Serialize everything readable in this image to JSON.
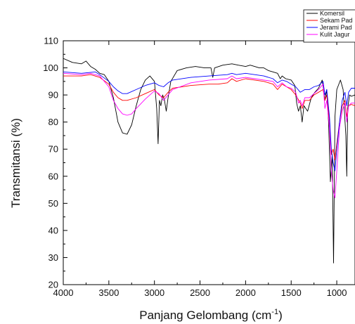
{
  "chart_data": {
    "type": "line",
    "xlabel": "Panjang Gelombang (cm",
    "xlabel_sup": "-1",
    "xlabel_suffix": ")",
    "ylabel": "Transmitansi (%)",
    "xlim": [
      4000,
      800
    ],
    "x_reversed": true,
    "ylim": [
      20,
      110
    ],
    "x_ticks": [
      4000,
      3500,
      3000,
      2500,
      2000,
      1500,
      1000
    ],
    "y_ticks": [
      20,
      30,
      40,
      50,
      60,
      70,
      80,
      90,
      100,
      110
    ],
    "grid": false,
    "legend_position": "top-right",
    "series": [
      {
        "name": "Komersil",
        "color": "#000000",
        "points": [
          [
            4000,
            103.5
          ],
          [
            3900,
            102
          ],
          [
            3800,
            101.5
          ],
          [
            3750,
            102.5
          ],
          [
            3700,
            100.5
          ],
          [
            3650,
            99.5
          ],
          [
            3600,
            98
          ],
          [
            3550,
            97.5
          ],
          [
            3500,
            95
          ],
          [
            3450,
            89
          ],
          [
            3400,
            80
          ],
          [
            3350,
            76
          ],
          [
            3300,
            75.5
          ],
          [
            3250,
            79
          ],
          [
            3200,
            86
          ],
          [
            3150,
            92
          ],
          [
            3100,
            95.5
          ],
          [
            3050,
            97
          ],
          [
            3000,
            95
          ],
          [
            2975,
            85
          ],
          [
            2960,
            72
          ],
          [
            2945,
            88
          ],
          [
            2930,
            86
          ],
          [
            2910,
            90
          ],
          [
            2890,
            88
          ],
          [
            2870,
            84
          ],
          [
            2850,
            89
          ],
          [
            2820,
            95
          ],
          [
            2750,
            99
          ],
          [
            2650,
            100
          ],
          [
            2550,
            100.5
          ],
          [
            2450,
            100
          ],
          [
            2380,
            100
          ],
          [
            2360,
            96.5
          ],
          [
            2340,
            100
          ],
          [
            2250,
            101
          ],
          [
            2150,
            101.5
          ],
          [
            2080,
            101
          ],
          [
            2000,
            100.5
          ],
          [
            1950,
            101
          ],
          [
            1900,
            100.5
          ],
          [
            1850,
            100
          ],
          [
            1800,
            100
          ],
          [
            1750,
            99
          ],
          [
            1700,
            98.5
          ],
          [
            1650,
            98
          ],
          [
            1620,
            96
          ],
          [
            1600,
            97
          ],
          [
            1560,
            96
          ],
          [
            1500,
            95.5
          ],
          [
            1460,
            93.5
          ],
          [
            1440,
            87
          ],
          [
            1420,
            84
          ],
          [
            1400,
            86
          ],
          [
            1380,
            80
          ],
          [
            1360,
            86
          ],
          [
            1320,
            84
          ],
          [
            1280,
            89
          ],
          [
            1240,
            91
          ],
          [
            1200,
            92.5
          ],
          [
            1160,
            95.5
          ],
          [
            1130,
            88
          ],
          [
            1110,
            92
          ],
          [
            1090,
            80
          ],
          [
            1070,
            58
          ],
          [
            1050,
            68
          ],
          [
            1035,
            28
          ],
          [
            1020,
            82
          ],
          [
            1000,
            92
          ],
          [
            960,
            95.5
          ],
          [
            930,
            92
          ],
          [
            900,
            75
          ],
          [
            890,
            60
          ],
          [
            880,
            85
          ],
          [
            860,
            90
          ],
          [
            840,
            89.5
          ],
          [
            800,
            90
          ]
        ]
      },
      {
        "name": "Sekam Pad",
        "color": "#ff0000",
        "points": [
          [
            4000,
            97
          ],
          [
            3800,
            97
          ],
          [
            3700,
            97.5
          ],
          [
            3600,
            96.5
          ],
          [
            3500,
            94
          ],
          [
            3450,
            91
          ],
          [
            3400,
            89
          ],
          [
            3350,
            88
          ],
          [
            3300,
            88
          ],
          [
            3200,
            89
          ],
          [
            3100,
            90.5
          ],
          [
            3000,
            92
          ],
          [
            2950,
            90
          ],
          [
            2900,
            89
          ],
          [
            2850,
            91
          ],
          [
            2800,
            92.5
          ],
          [
            2600,
            93.5
          ],
          [
            2400,
            94
          ],
          [
            2300,
            94
          ],
          [
            2200,
            94.5
          ],
          [
            2150,
            96
          ],
          [
            2100,
            95
          ],
          [
            2000,
            96
          ],
          [
            1900,
            95.5
          ],
          [
            1800,
            95
          ],
          [
            1700,
            94
          ],
          [
            1650,
            92
          ],
          [
            1600,
            94
          ],
          [
            1550,
            93
          ],
          [
            1500,
            92
          ],
          [
            1450,
            90
          ],
          [
            1400,
            87
          ],
          [
            1380,
            85
          ],
          [
            1350,
            88
          ],
          [
            1300,
            88
          ],
          [
            1250,
            90
          ],
          [
            1200,
            91
          ],
          [
            1150,
            92
          ],
          [
            1130,
            88
          ],
          [
            1110,
            90
          ],
          [
            1080,
            80
          ],
          [
            1060,
            68
          ],
          [
            1040,
            70
          ],
          [
            1020,
            66
          ],
          [
            1000,
            72
          ],
          [
            970,
            80
          ],
          [
            940,
            86
          ],
          [
            910,
            88
          ],
          [
            890,
            82
          ],
          [
            870,
            86
          ],
          [
            840,
            86.5
          ],
          [
            800,
            86
          ]
        ]
      },
      {
        "name": "Jerami Pad",
        "color": "#0000ff",
        "points": [
          [
            4000,
            98.5
          ],
          [
            3800,
            98
          ],
          [
            3650,
            98.5
          ],
          [
            3600,
            97.5
          ],
          [
            3500,
            95
          ],
          [
            3450,
            93
          ],
          [
            3400,
            91.5
          ],
          [
            3350,
            90.5
          ],
          [
            3300,
            90.5
          ],
          [
            3200,
            92
          ],
          [
            3100,
            93.5
          ],
          [
            3000,
            94.5
          ],
          [
            2950,
            93.5
          ],
          [
            2900,
            93
          ],
          [
            2850,
            94.5
          ],
          [
            2800,
            95.5
          ],
          [
            2600,
            96.5
          ],
          [
            2400,
            97
          ],
          [
            2200,
            97.5
          ],
          [
            2150,
            98
          ],
          [
            2100,
            97.5
          ],
          [
            2000,
            98
          ],
          [
            1900,
            97.5
          ],
          [
            1800,
            97
          ],
          [
            1700,
            96
          ],
          [
            1650,
            94.5
          ],
          [
            1600,
            95.5
          ],
          [
            1550,
            95
          ],
          [
            1500,
            94
          ],
          [
            1450,
            93
          ],
          [
            1400,
            91
          ],
          [
            1350,
            92
          ],
          [
            1300,
            92
          ],
          [
            1250,
            93
          ],
          [
            1200,
            93.5
          ],
          [
            1150,
            95
          ],
          [
            1130,
            90
          ],
          [
            1110,
            92
          ],
          [
            1080,
            82
          ],
          [
            1060,
            70
          ],
          [
            1040,
            65
          ],
          [
            1020,
            62
          ],
          [
            1000,
            70
          ],
          [
            970,
            80
          ],
          [
            940,
            88
          ],
          [
            910,
            91
          ],
          [
            890,
            86
          ],
          [
            870,
            91
          ],
          [
            840,
            92.5
          ],
          [
            800,
            92.5
          ]
        ]
      },
      {
        "name": "Kulit Jagur",
        "color": "#ff00ff",
        "points": [
          [
            4000,
            98
          ],
          [
            3800,
            97.5
          ],
          [
            3700,
            98
          ],
          [
            3600,
            97
          ],
          [
            3500,
            93
          ],
          [
            3450,
            88
          ],
          [
            3400,
            85
          ],
          [
            3350,
            83
          ],
          [
            3300,
            82.5
          ],
          [
            3250,
            83
          ],
          [
            3200,
            85
          ],
          [
            3100,
            88.5
          ],
          [
            3000,
            91.5
          ],
          [
            2950,
            90.5
          ],
          [
            2900,
            88
          ],
          [
            2850,
            90
          ],
          [
            2800,
            92
          ],
          [
            2600,
            94.5
          ],
          [
            2400,
            95.5
          ],
          [
            2200,
            96
          ],
          [
            2150,
            97
          ],
          [
            2100,
            96
          ],
          [
            2000,
            96.5
          ],
          [
            1900,
            96
          ],
          [
            1800,
            95.5
          ],
          [
            1700,
            95
          ],
          [
            1650,
            93
          ],
          [
            1600,
            94.5
          ],
          [
            1550,
            93
          ],
          [
            1500,
            92.5
          ],
          [
            1450,
            91
          ],
          [
            1420,
            87
          ],
          [
            1400,
            88
          ],
          [
            1380,
            86
          ],
          [
            1350,
            89
          ],
          [
            1300,
            89
          ],
          [
            1250,
            90.5
          ],
          [
            1200,
            92
          ],
          [
            1150,
            94
          ],
          [
            1130,
            85
          ],
          [
            1110,
            88
          ],
          [
            1080,
            78
          ],
          [
            1060,
            62
          ],
          [
            1040,
            55
          ],
          [
            1020,
            52
          ],
          [
            1000,
            62
          ],
          [
            970,
            78
          ],
          [
            940,
            84
          ],
          [
            910,
            87
          ],
          [
            890,
            80
          ],
          [
            870,
            86
          ],
          [
            840,
            87
          ],
          [
            800,
            87
          ]
        ]
      }
    ]
  }
}
